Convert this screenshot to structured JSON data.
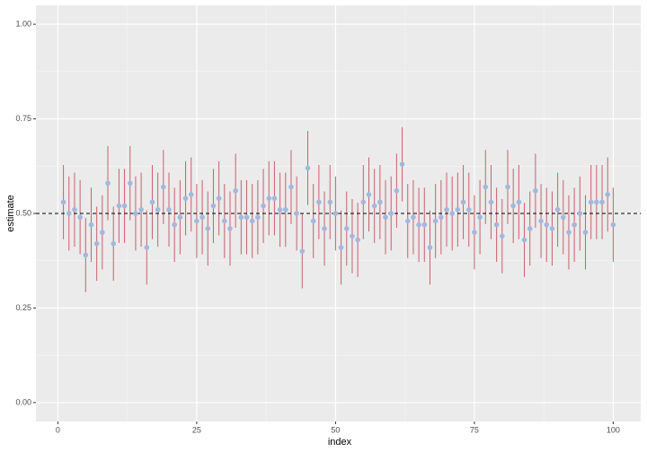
{
  "chart_data": {
    "type": "errorbar",
    "x_label": "index",
    "y_label": "estimate",
    "x": [
      1,
      2,
      3,
      4,
      5,
      6,
      7,
      8,
      9,
      10,
      11,
      12,
      13,
      14,
      15,
      16,
      17,
      18,
      19,
      20,
      21,
      22,
      23,
      24,
      25,
      26,
      27,
      28,
      29,
      30,
      31,
      32,
      33,
      34,
      35,
      36,
      37,
      38,
      39,
      40,
      41,
      42,
      43,
      44,
      45,
      46,
      47,
      48,
      49,
      50,
      51,
      52,
      53,
      54,
      55,
      56,
      57,
      58,
      59,
      60,
      61,
      62,
      63,
      64,
      65,
      66,
      67,
      68,
      69,
      70,
      71,
      72,
      73,
      74,
      75,
      76,
      77,
      78,
      79,
      80,
      81,
      82,
      83,
      84,
      85,
      86,
      87,
      88,
      89,
      90,
      91,
      92,
      93,
      94,
      95,
      96,
      97,
      98,
      99,
      100
    ],
    "values": [
      0.53,
      0.5,
      0.51,
      0.49,
      0.39,
      0.47,
      0.42,
      0.45,
      0.58,
      0.42,
      0.52,
      0.52,
      0.58,
      0.5,
      0.51,
      0.41,
      0.53,
      0.51,
      0.57,
      0.51,
      0.47,
      0.49,
      0.54,
      0.55,
      0.48,
      0.49,
      0.46,
      0.52,
      0.54,
      0.48,
      0.46,
      0.56,
      0.49,
      0.49,
      0.48,
      0.49,
      0.52,
      0.54,
      0.54,
      0.51,
      0.51,
      0.57,
      0.5,
      0.4,
      0.62,
      0.48,
      0.53,
      0.46,
      0.53,
      0.5,
      0.41,
      0.46,
      0.44,
      0.43,
      0.53,
      0.55,
      0.52,
      0.53,
      0.49,
      0.5,
      0.56,
      0.63,
      0.48,
      0.49,
      0.47,
      0.47,
      0.41,
      0.48,
      0.49,
      0.51,
      0.5,
      0.51,
      0.53,
      0.51,
      0.45,
      0.49,
      0.57,
      0.53,
      0.47,
      0.44,
      0.57,
      0.52,
      0.53,
      0.43,
      0.46,
      0.56,
      0.48,
      0.47,
      0.46,
      0.51,
      0.49,
      0.45,
      0.47,
      0.5,
      0.45,
      0.53,
      0.53,
      0.53,
      0.55,
      0.47
    ],
    "error": 0.098,
    "point_color": "#a3b8dc",
    "bar_color": "#c7606e",
    "hline": 0.5,
    "xlim": [
      -3.95,
      104.95
    ],
    "ylim": [
      -0.05,
      1.05
    ],
    "xticks": [
      0,
      25,
      50,
      75,
      100
    ],
    "yticks": [
      {
        "value": 0,
        "label": "0.00"
      },
      {
        "value": 0.25,
        "label": "0.25"
      },
      {
        "value": 0.5,
        "label": "0.50"
      },
      {
        "value": 0.75,
        "label": "0.75"
      },
      {
        "value": 1,
        "label": "1.00"
      }
    ],
    "grid": true
  }
}
